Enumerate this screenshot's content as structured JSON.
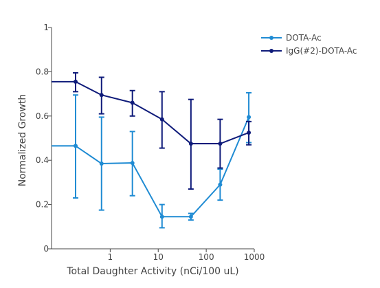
{
  "chart_data": {
    "type": "line",
    "title": "",
    "xlabel": "Total Daughter Activity (nCi/100 uL)",
    "ylabel": "Normalized Growth",
    "xscale": "log",
    "xlim": [
      0.06,
      1000
    ],
    "ylim": [
      0,
      1
    ],
    "x_ticks": [
      1,
      10,
      100,
      1000
    ],
    "x_tick_labels": [
      "1",
      "10",
      "100",
      "1000"
    ],
    "y_ticks": [
      0,
      0.2,
      0.4,
      0.6,
      0.8,
      1
    ],
    "y_tick_labels": [
      "0",
      "0.2",
      "0.4",
      "0.6",
      "0.8",
      "1"
    ],
    "grid": false,
    "legend_position": "top-right",
    "series": [
      {
        "name": "DOTA-Ac",
        "color": "#1f8bd3",
        "points": [
          {
            "x": 0.06,
            "y": 0.465,
            "err_low": null,
            "err_high": null
          },
          {
            "x": 0.19,
            "y": 0.465,
            "err_low": 0.23,
            "err_high": 0.695
          },
          {
            "x": 0.66,
            "y": 0.385,
            "err_low": 0.175,
            "err_high": 0.595
          },
          {
            "x": 2.9,
            "y": 0.388,
            "err_low": 0.24,
            "err_high": 0.53
          },
          {
            "x": 12,
            "y": 0.145,
            "err_low": 0.095,
            "err_high": 0.2
          },
          {
            "x": 48,
            "y": 0.145,
            "err_low": 0.13,
            "err_high": 0.16
          },
          {
            "x": 195,
            "y": 0.29,
            "err_low": 0.22,
            "err_high": 0.36
          },
          {
            "x": 770,
            "y": 0.595,
            "err_low": 0.48,
            "err_high": 0.705
          }
        ]
      },
      {
        "name": "IgG(#2)-DOTA-Ac",
        "color": "#0f1b7a",
        "points": [
          {
            "x": 0.06,
            "y": 0.755,
            "err_low": null,
            "err_high": null
          },
          {
            "x": 0.19,
            "y": 0.755,
            "err_low": 0.71,
            "err_high": 0.795
          },
          {
            "x": 0.66,
            "y": 0.695,
            "err_low": 0.61,
            "err_high": 0.775
          },
          {
            "x": 2.9,
            "y": 0.66,
            "err_low": 0.6,
            "err_high": 0.715
          },
          {
            "x": 12,
            "y": 0.585,
            "err_low": 0.455,
            "err_high": 0.71
          },
          {
            "x": 48,
            "y": 0.475,
            "err_low": 0.27,
            "err_high": 0.675
          },
          {
            "x": 195,
            "y": 0.475,
            "err_low": 0.365,
            "err_high": 0.585
          },
          {
            "x": 770,
            "y": 0.525,
            "err_low": 0.47,
            "err_high": 0.575
          }
        ]
      }
    ]
  }
}
